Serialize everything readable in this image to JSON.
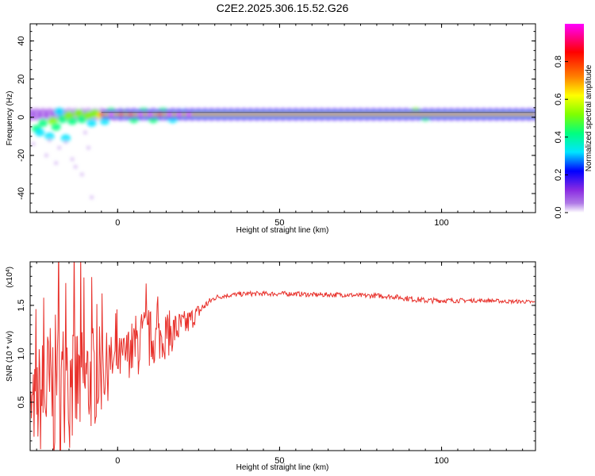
{
  "chart_data": [
    {
      "type": "heatmap",
      "title": "C2E2.2025.306.15.52.G26",
      "xlabel": "Height of straight line (km)",
      "ylabel": "Frequency (Hz)",
      "xlim": [
        -27,
        129
      ],
      "ylim": [
        -50,
        49
      ],
      "xticks": [
        0,
        50,
        100
      ],
      "yticks": [
        -40,
        -20,
        0,
        20,
        40
      ],
      "colorbar": {
        "label": "Normalized spectral amplitude",
        "range": [
          0,
          1
        ],
        "ticks": [
          "0.0",
          "0.2",
          "0.4",
          "0.6",
          "0.8"
        ],
        "tick_values": [
          0.0,
          0.2,
          0.4,
          0.6,
          0.8
        ],
        "colors": [
          "#ffffff",
          "#b07ae6",
          "#8a2be2",
          "#0000ff",
          "#00e5ff",
          "#00ff7f",
          "#7fff00",
          "#ffff00",
          "#ff7f00",
          "#ff0000",
          "#ff00ff"
        ],
        "stops": [
          0.0,
          0.05,
          0.12,
          0.22,
          0.32,
          0.42,
          0.52,
          0.62,
          0.72,
          0.85,
          1.0
        ]
      },
      "dominant_frequency_hz": 1.5,
      "blobs": [
        {
          "x": -25,
          "y": -6,
          "a": 0.35
        },
        {
          "x": -24,
          "y": -8,
          "a": 0.3
        },
        {
          "x": -23,
          "y": -3,
          "a": 0.4
        },
        {
          "x": -21,
          "y": -10,
          "a": 0.3
        },
        {
          "x": -20,
          "y": -2,
          "a": 0.45
        },
        {
          "x": -19,
          "y": -5,
          "a": 0.35
        },
        {
          "x": -18,
          "y": 3,
          "a": 0.3
        },
        {
          "x": -17,
          "y": -1,
          "a": 0.4
        },
        {
          "x": -16,
          "y": -11,
          "a": 0.25
        },
        {
          "x": -15,
          "y": 1,
          "a": 0.5
        },
        {
          "x": -14,
          "y": -2,
          "a": 0.35
        },
        {
          "x": -12,
          "y": 2,
          "a": 0.45
        },
        {
          "x": -11,
          "y": -1,
          "a": 0.4
        },
        {
          "x": -9,
          "y": 1,
          "a": 0.5
        },
        {
          "x": -8,
          "y": -3,
          "a": 0.3
        },
        {
          "x": -7,
          "y": 2,
          "a": 0.45
        },
        {
          "x": -5,
          "y": 1,
          "a": 0.55
        },
        {
          "x": -4,
          "y": -2,
          "a": 0.3
        },
        {
          "x": -2,
          "y": 3,
          "a": 0.35
        },
        {
          "x": 2,
          "y": 2,
          "a": 0.45
        },
        {
          "x": 5,
          "y": -1,
          "a": 0.35
        },
        {
          "x": 8,
          "y": 3,
          "a": 0.4
        },
        {
          "x": 11,
          "y": -1,
          "a": 0.35
        },
        {
          "x": 14,
          "y": 3,
          "a": 0.35
        },
        {
          "x": 17,
          "y": -1,
          "a": 0.3
        },
        {
          "x": 20,
          "y": 2,
          "a": 0.3
        },
        {
          "x": 92,
          "y": 3,
          "a": 0.45
        },
        {
          "x": 95,
          "y": 0,
          "a": 0.35
        }
      ],
      "scatter_dots": [
        {
          "x": -22,
          "y": -20
        },
        {
          "x": -18,
          "y": -16
        },
        {
          "x": -14,
          "y": -22
        },
        {
          "x": -13,
          "y": -26
        },
        {
          "x": -11,
          "y": -30
        },
        {
          "x": -8,
          "y": -42
        },
        {
          "x": -16,
          "y": -13
        },
        {
          "x": -10,
          "y": -8
        },
        {
          "x": -19,
          "y": -24
        },
        {
          "x": -26,
          "y": -14
        },
        {
          "x": -21,
          "y": -12
        },
        {
          "x": -9,
          "y": -16
        }
      ]
    },
    {
      "type": "line",
      "xlabel": "Height of straight line (km)",
      "ylabel": "SNR (10 * v/v)",
      "exponent_label": "(x10",
      "exponent_power": "4",
      "line_color": "#e8312b",
      "xlim": [
        -27,
        129
      ],
      "ylim": [
        0,
        19500
      ],
      "xticks": [
        0,
        50,
        100
      ],
      "yticks": [
        5000,
        10000,
        15000
      ],
      "ytick_labels": [
        "0.5",
        "1.0",
        "1.5"
      ],
      "x": [
        -27,
        -24,
        -21,
        -18,
        -15,
        -12,
        -9,
        -6,
        -3,
        0,
        3,
        6,
        9,
        12,
        15,
        18,
        21,
        24,
        27,
        30,
        33,
        36,
        40,
        45,
        50,
        55,
        60,
        65,
        70,
        75,
        80,
        85,
        90,
        95,
        100,
        105,
        110,
        115,
        120,
        125,
        129
      ],
      "y": [
        4000,
        5500,
        6000,
        6500,
        6500,
        6800,
        7200,
        8000,
        8600,
        9200,
        10000,
        11000,
        11500,
        11500,
        12000,
        12500,
        13000,
        14000,
        15000,
        15800,
        16000,
        16100,
        16200,
        16200,
        16200,
        16200,
        16100,
        16100,
        16100,
        16000,
        16000,
        15900,
        15700,
        15500,
        15500,
        15500,
        15500,
        15500,
        15400,
        15400,
        15300
      ],
      "noise": [
        3000,
        6000,
        7500,
        8000,
        7000,
        6500,
        6000,
        5000,
        3500,
        2500,
        2500,
        3500,
        3500,
        2500,
        2500,
        2000,
        1500,
        1000,
        500,
        300,
        250,
        250,
        250,
        250,
        250,
        250,
        250,
        250,
        250,
        250,
        250,
        250,
        300,
        300,
        250,
        250,
        200,
        200,
        200,
        200,
        200
      ]
    }
  ]
}
